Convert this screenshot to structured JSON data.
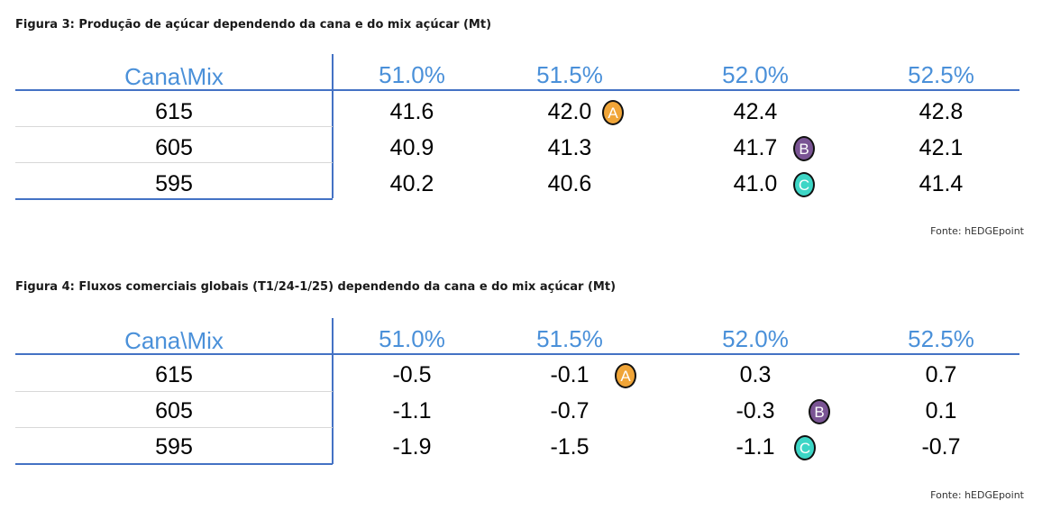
{
  "source_label": "Fonte: hEDGEpoint",
  "figures": [
    {
      "title": "Figura 3: Produção de açúcar dependendo da cana e do mix açúcar (Mt)",
      "corner": "Cana\\Mix",
      "columns": [
        "51.0%",
        "51.5%",
        "52.0%",
        "52.5%"
      ],
      "rows": [
        {
          "label": "615",
          "values": [
            "41.6",
            "42.0",
            "42.4",
            "42.8"
          ]
        },
        {
          "label": "605",
          "values": [
            "40.9",
            "41.3",
            "41.7",
            "42.1"
          ]
        },
        {
          "label": "595",
          "values": [
            "40.2",
            "40.6",
            "41.0",
            "41.4"
          ]
        }
      ],
      "badges": {
        "a": "A",
        "b": "B",
        "c": "C"
      },
      "source": "Fonte: hEDGEpoint"
    },
    {
      "title": "Figura 4: Fluxos comerciais globais (T1/24-1/25) dependendo da cana e do mix açúcar (Mt)",
      "corner": "Cana\\Mix",
      "columns": [
        "51.0%",
        "51.5%",
        "52.0%",
        "52.5%"
      ],
      "rows": [
        {
          "label": "615",
          "values": [
            "-0.5",
            "-0.1",
            "0.3",
            "0.7"
          ]
        },
        {
          "label": "605",
          "values": [
            "-1.1",
            "-0.7",
            "-0.3",
            "0.1"
          ]
        },
        {
          "label": "595",
          "values": [
            "-1.9",
            "-1.5",
            "-1.1",
            "-0.7"
          ]
        }
      ],
      "badges": {
        "a": "A",
        "b": "B",
        "c": "C"
      },
      "source": "Fonte: hEDGEpoint"
    }
  ],
  "colors": {
    "header_text": "#4a90d9",
    "rule": "#4472c4",
    "badge_a": "#f0a538",
    "badge_b": "#7a5494",
    "badge_c": "#3dd6c6"
  }
}
